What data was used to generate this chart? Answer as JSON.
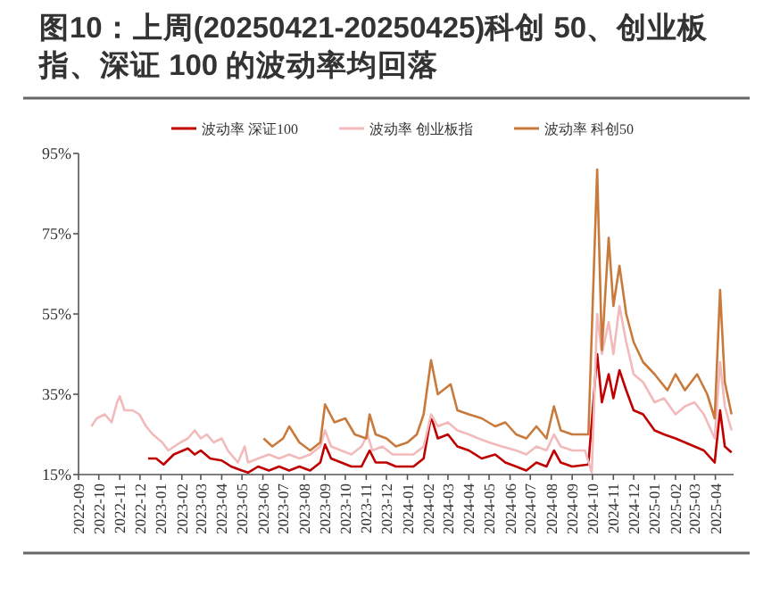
{
  "chart_data": {
    "type": "line",
    "title": "图10：上周(20250421-20250425)科创 50、创业板指、深证 100 的波动率均回落",
    "legend": "top",
    "grid": false,
    "xlim": [
      "2022-09-01",
      "2025-04-28"
    ],
    "xticks": [
      "2022-09",
      "2022-10",
      "2022-11",
      "2022-12",
      "2023-01",
      "2023-02",
      "2023-03",
      "2023-04",
      "2023-05",
      "2023-06",
      "2023-07",
      "2023-08",
      "2023-09",
      "2023-10",
      "2023-11",
      "2023-12",
      "2024-01",
      "2024-02",
      "2024-03",
      "2024-04",
      "2024-05",
      "2024-06",
      "2024-07",
      "2024-08",
      "2024-09",
      "2024-10",
      "2024-11",
      "2024-12",
      "2025-01",
      "2025-02",
      "2025-03",
      "2025-04"
    ],
    "ylim": [
      15,
      95
    ],
    "yticks": [
      {
        "value": 15,
        "label": "15%"
      },
      {
        "value": 35,
        "label": "35%"
      },
      {
        "value": 55,
        "label": "55%"
      },
      {
        "value": 75,
        "label": "75%"
      },
      {
        "value": 95,
        "label": "95%"
      }
    ],
    "series": [
      {
        "name": "波动率 深证100",
        "color": "#c00000",
        "x": [
          "2022-12-13",
          "2022-12-25",
          "2023-01-05",
          "2023-01-20",
          "2023-02-10",
          "2023-02-20",
          "2023-03-01",
          "2023-03-15",
          "2023-04-01",
          "2023-04-15",
          "2023-05-01",
          "2023-05-10",
          "2023-05-25",
          "2023-06-10",
          "2023-06-25",
          "2023-07-10",
          "2023-07-25",
          "2023-08-10",
          "2023-08-25",
          "2023-09-01",
          "2023-09-10",
          "2023-09-25",
          "2023-10-10",
          "2023-10-25",
          "2023-11-06",
          "2023-11-15",
          "2023-12-01",
          "2023-12-15",
          "2024-01-10",
          "2024-01-25",
          "2024-02-05",
          "2024-02-15",
          "2024-03-01",
          "2024-03-15",
          "2024-04-01",
          "2024-04-20",
          "2024-05-10",
          "2024-05-25",
          "2024-06-10",
          "2024-06-25",
          "2024-07-10",
          "2024-07-25",
          "2024-08-05",
          "2024-08-15",
          "2024-09-01",
          "2024-09-25",
          "2024-10-08",
          "2024-10-15",
          "2024-10-25",
          "2024-11-01",
          "2024-11-10",
          "2024-11-20",
          "2024-12-01",
          "2024-12-15",
          "2025-01-01",
          "2025-01-15",
          "2025-02-01",
          "2025-02-15",
          "2025-03-01",
          "2025-03-15",
          "2025-03-31",
          "2025-04-08",
          "2025-04-15",
          "2025-04-25"
        ],
        "values": [
          19,
          19,
          17.5,
          20,
          21.5,
          20,
          21,
          19,
          18.5,
          17,
          16,
          15.5,
          17,
          16,
          17,
          16,
          17,
          16,
          18,
          22.5,
          19,
          18,
          17,
          17,
          21,
          18,
          18,
          17,
          17,
          19,
          29.5,
          24,
          25,
          22,
          21,
          19,
          20,
          18,
          17,
          16,
          18,
          17,
          21,
          18,
          17,
          17.5,
          45,
          33,
          40,
          34,
          41,
          36,
          31,
          30,
          26,
          25,
          24,
          23,
          22,
          21,
          18,
          31,
          22,
          20.5
        ]
      },
      {
        "name": "波动率 创业板指",
        "color": "#f2baba",
        "x": [
          "2022-09-20",
          "2022-09-28",
          "2022-10-10",
          "2022-10-20",
          "2022-10-28",
          "2022-11-01",
          "2022-11-08",
          "2022-11-20",
          "2022-11-30",
          "2022-12-10",
          "2022-12-20",
          "2023-01-03",
          "2023-01-12",
          "2023-01-30",
          "2023-02-10",
          "2023-02-20",
          "2023-03-01",
          "2023-03-10",
          "2023-03-20",
          "2023-04-01",
          "2023-04-10",
          "2023-04-25",
          "2023-05-05",
          "2023-05-10",
          "2023-05-25",
          "2023-06-10",
          "2023-06-25",
          "2023-07-10",
          "2023-07-25",
          "2023-08-10",
          "2023-08-25",
          "2023-09-01",
          "2023-09-10",
          "2023-09-25",
          "2023-10-10",
          "2023-10-25",
          "2023-11-03",
          "2023-11-10",
          "2023-11-25",
          "2023-12-10",
          "2023-12-25",
          "2024-01-10",
          "2024-01-25",
          "2024-02-05",
          "2024-02-15",
          "2024-03-01",
          "2024-03-15",
          "2024-04-01",
          "2024-04-15",
          "2024-05-01",
          "2024-05-20",
          "2024-06-10",
          "2024-06-25",
          "2024-07-10",
          "2024-07-25",
          "2024-08-05",
          "2024-08-15",
          "2024-09-01",
          "2024-09-20",
          "2024-09-30",
          "2024-10-08",
          "2024-10-15",
          "2024-10-25",
          "2024-11-01",
          "2024-11-10",
          "2024-11-20",
          "2024-12-01",
          "2024-12-15",
          "2025-01-01",
          "2025-01-15",
          "2025-02-01",
          "2025-02-15",
          "2025-03-01",
          "2025-03-15",
          "2025-03-31",
          "2025-04-08",
          "2025-04-15",
          "2025-04-25"
        ],
        "values": [
          27,
          29,
          30,
          28,
          33,
          34.5,
          31,
          31,
          30,
          27,
          25,
          23,
          21,
          23,
          24,
          26,
          24,
          25,
          23,
          24,
          21,
          18,
          22,
          18,
          19,
          20,
          19,
          20,
          19,
          20,
          22,
          26,
          22,
          21,
          20,
          22,
          25,
          21,
          22,
          20,
          20,
          20,
          22,
          30,
          27,
          28,
          26,
          25,
          24,
          23,
          22,
          21,
          20,
          22,
          21,
          25,
          22,
          21,
          21,
          15.5,
          55,
          45,
          53,
          45,
          57,
          48,
          40,
          38,
          33,
          34,
          30,
          32,
          33,
          30,
          24,
          43,
          32,
          26
        ]
      },
      {
        "name": "波动率 科创50",
        "color": "#c87a3c",
        "x": [
          "2023-06-02",
          "2023-06-15",
          "2023-07-01",
          "2023-07-10",
          "2023-07-25",
          "2023-08-10",
          "2023-08-25",
          "2023-09-01",
          "2023-09-15",
          "2023-10-01",
          "2023-10-15",
          "2023-11-01",
          "2023-11-06",
          "2023-11-15",
          "2023-12-01",
          "2023-12-15",
          "2024-01-01",
          "2024-01-15",
          "2024-01-25",
          "2024-02-05",
          "2024-02-15",
          "2024-03-05",
          "2024-03-15",
          "2024-04-01",
          "2024-04-20",
          "2024-05-10",
          "2024-05-25",
          "2024-06-10",
          "2024-06-25",
          "2024-07-10",
          "2024-07-25",
          "2024-08-05",
          "2024-08-15",
          "2024-09-01",
          "2024-09-25",
          "2024-10-08",
          "2024-10-15",
          "2024-10-25",
          "2024-11-01",
          "2024-11-10",
          "2024-11-20",
          "2024-12-01",
          "2024-12-15",
          "2025-01-01",
          "2025-01-20",
          "2025-02-01",
          "2025-02-15",
          "2025-03-05",
          "2025-03-20",
          "2025-03-31",
          "2025-04-08",
          "2025-04-15",
          "2025-04-25"
        ],
        "values": [
          24,
          22,
          24,
          27,
          23,
          21,
          23,
          32.5,
          28,
          29,
          25,
          24,
          30,
          25,
          24,
          22,
          23,
          25,
          30,
          43.5,
          35,
          37.5,
          31,
          30,
          29,
          27,
          28,
          25,
          24,
          27,
          24,
          32,
          26,
          25,
          25,
          91,
          46,
          74,
          57,
          67,
          55,
          48,
          43,
          40,
          36,
          40,
          36,
          40,
          35,
          29,
          61,
          38,
          30
        ]
      }
    ]
  }
}
